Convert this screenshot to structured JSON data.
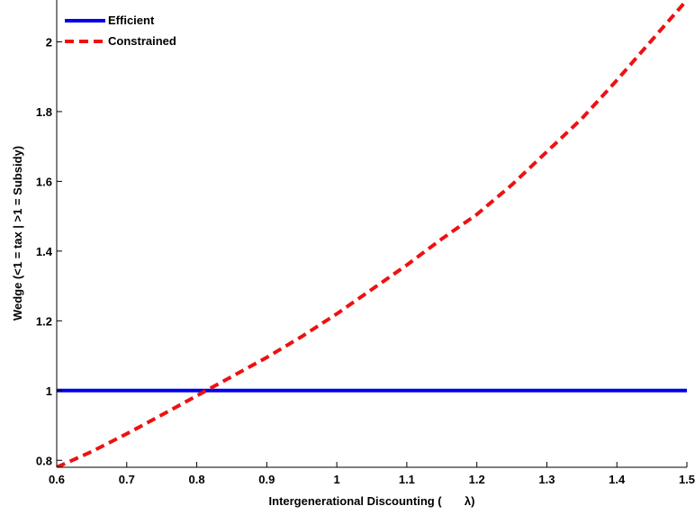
{
  "chart_data": {
    "type": "line",
    "title": "",
    "xlabel": "Intergenerational Discounting (       λ)",
    "ylabel": "Wedge (<1 = tax | >1 = Subsidy)",
    "xlim": [
      0.6,
      1.5
    ],
    "ylim": [
      0.78,
      2.12
    ],
    "x_ticks": [
      "0.6",
      "0.7",
      "0.8",
      "0.9",
      "1",
      "1.1",
      "1.2",
      "1.3",
      "1.4",
      "1.5"
    ],
    "y_ticks": [
      "0.8",
      "1",
      "1.2",
      "1.4",
      "1.6",
      "1.8",
      "2"
    ],
    "grid": false,
    "legend_position": "top-left",
    "series": [
      {
        "name": "Efficient",
        "color": "#0000ee",
        "style": "solid",
        "x": [
          0.6,
          0.7,
          0.8,
          0.9,
          1.0,
          1.1,
          1.2,
          1.3,
          1.4,
          1.5
        ],
        "y": [
          1,
          1,
          1,
          1,
          1,
          1,
          1,
          1,
          1,
          1
        ]
      },
      {
        "name": "Constrained",
        "color": "#ee1111",
        "style": "dashed",
        "x": [
          0.6,
          0.65,
          0.7,
          0.75,
          0.8,
          0.85,
          0.9,
          0.95,
          1.0,
          1.05,
          1.1,
          1.15,
          1.2,
          1.25,
          1.3,
          1.35,
          1.4,
          1.45,
          1.5
        ],
        "y": [
          0.78,
          0.825,
          0.876,
          0.93,
          0.985,
          1.04,
          1.095,
          1.155,
          1.22,
          1.29,
          1.36,
          1.435,
          1.505,
          1.59,
          1.685,
          1.78,
          1.89,
          2.005,
          2.12
        ]
      }
    ]
  }
}
